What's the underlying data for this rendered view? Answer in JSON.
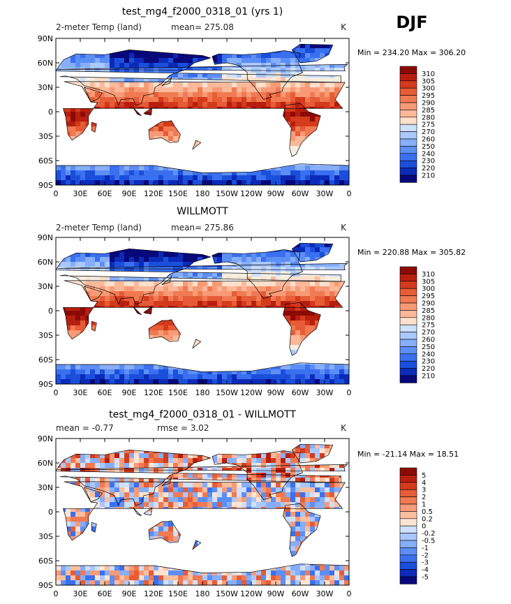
{
  "season": "DJF",
  "colors": {
    "abs_scale": [
      "#08087a",
      "#0c2ab8",
      "#1a4fdc",
      "#3a6ff0",
      "#5c8ff5",
      "#86aefa",
      "#aac8fb",
      "#cfe0fc",
      "#f4eee0",
      "#fde0cc",
      "#fbb99a",
      "#f79a75",
      "#f07a52",
      "#e65c36",
      "#d43a1c",
      "#b81e0e",
      "#8c0a06"
    ],
    "diff_scale": [
      "#08087a",
      "#0c2ab8",
      "#1a4fdc",
      "#3a6ff0",
      "#5c8ff5",
      "#86aefa",
      "#aac8fb",
      "#cfe0fc",
      "#fde4d2",
      "#fbbfa0",
      "#f79b78",
      "#f07a52",
      "#e65c36",
      "#d43a1c",
      "#b81e0e",
      "#8c0a06"
    ]
  },
  "chart_data": [
    {
      "type": "heatmap",
      "title": "test_mg4_f2000_0318_01 (yrs 1)",
      "left_label": "2-meter Temp (land)",
      "mean_text": "mean= 275.08",
      "units": "K",
      "min_max_text": "Min = 234.20 Max = 306.20",
      "min": 234.2,
      "max": 306.2,
      "mean": 275.08,
      "x_ticks": [
        "0",
        "30E",
        "60E",
        "90E",
        "120E",
        "150E",
        "180",
        "150W",
        "120W",
        "90W",
        "60W",
        "30W",
        "0"
      ],
      "y_ticks": [
        "90N",
        "60N",
        "30N",
        "0",
        "30S",
        "60S",
        "90S"
      ],
      "colorbar_levels": [
        "310",
        "305",
        "300",
        "295",
        "290",
        "285",
        "280",
        "275",
        "270",
        "260",
        "250",
        "240",
        "230",
        "220",
        "210"
      ],
      "xlim": [
        0,
        360
      ],
      "ylim": [
        -90,
        90
      ]
    },
    {
      "type": "heatmap",
      "title": "WILLMOTT",
      "left_label": "2-meter Temp (land)",
      "mean_text": "mean= 275.86",
      "units": "K",
      "min_max_text": "Min = 220.88 Max = 305.82",
      "min": 220.88,
      "max": 305.82,
      "mean": 275.86,
      "x_ticks": [
        "0",
        "30E",
        "60E",
        "90E",
        "120E",
        "150E",
        "180",
        "150W",
        "120W",
        "90W",
        "60W",
        "30W",
        "0"
      ],
      "y_ticks": [
        "90N",
        "60N",
        "30N",
        "0",
        "30S",
        "60S",
        "90S"
      ],
      "colorbar_levels": [
        "310",
        "305",
        "300",
        "295",
        "290",
        "285",
        "280",
        "275",
        "270",
        "260",
        "250",
        "240",
        "230",
        "220",
        "210"
      ],
      "xlim": [
        0,
        360
      ],
      "ylim": [
        -90,
        90
      ]
    },
    {
      "type": "heatmap",
      "title": "test_mg4_f2000_0318_01 - WILLMOTT",
      "mean_text": "mean =   -0.77",
      "rmse_text": "rmse =     3.02",
      "mean": -0.77,
      "rmse": 3.02,
      "units": "K",
      "min_max_text": "Min = -21.14 Max =  18.51",
      "min": -21.14,
      "max": 18.51,
      "x_ticks": [
        "0",
        "30E",
        "60E",
        "90E",
        "120E",
        "150E",
        "180",
        "150W",
        "120W",
        "90W",
        "60W",
        "30W",
        "0"
      ],
      "y_ticks": [
        "90N",
        "60N",
        "30N",
        "0",
        "30S",
        "60S",
        "90S"
      ],
      "colorbar_levels": [
        "5",
        "4",
        "3",
        "2",
        "1",
        "0.5",
        "0.2",
        "0",
        "-0.2",
        "-0.5",
        "-1",
        "-2",
        "-3",
        "-4",
        "-5"
      ],
      "xlim": [
        0,
        360
      ],
      "ylim": [
        -90,
        90
      ]
    }
  ]
}
